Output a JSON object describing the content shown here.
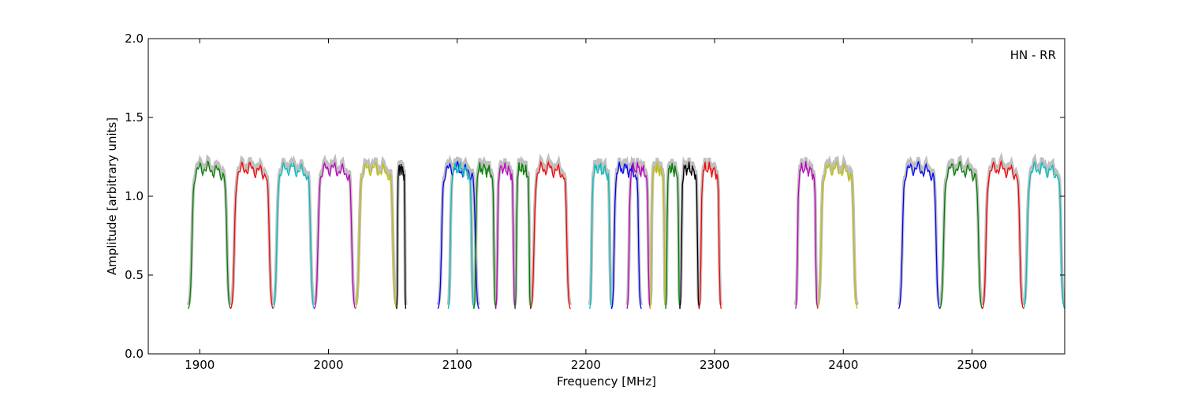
{
  "chart_data": {
    "type": "line",
    "title": "",
    "annotation": "HN - RR",
    "xlabel": "Frequency [MHz]",
    "ylabel": "Amplitude [arbitrary units]",
    "xlim": [
      1860,
      2572
    ],
    "ylim": [
      0.0,
      2.0
    ],
    "xticks": [
      1900,
      2000,
      2100,
      2200,
      2300,
      2400,
      2500
    ],
    "xtick_labels": [
      "1900",
      "2000",
      "2100",
      "2200",
      "2300",
      "2400",
      "2500"
    ],
    "yticks": [
      0.0,
      0.5,
      1.0,
      1.5,
      2.0
    ],
    "ytick_labels": [
      "0.0",
      "0.5",
      "1.0",
      "1.5",
      "2.0"
    ],
    "grid": false,
    "background_color": "#bfbfbf",
    "segments": [
      {
        "start": 1891,
        "end": 1924,
        "color": "#008000"
      },
      {
        "start": 1924,
        "end": 1957,
        "color": "#ff0000"
      },
      {
        "start": 1957,
        "end": 1989,
        "color": "#00bfbf"
      },
      {
        "start": 1989,
        "end": 2021,
        "color": "#bf00bf"
      },
      {
        "start": 2021,
        "end": 2053,
        "color": "#bfbf00"
      },
      {
        "start": 2053,
        "end": 2060,
        "color": "#000000"
      },
      {
        "start": 2085,
        "end": 2117,
        "color": "#0000ff"
      },
      {
        "start": 2093,
        "end": 2113,
        "color": "#00bfbf"
      },
      {
        "start": 2113,
        "end": 2130,
        "color": "#008000"
      },
      {
        "start": 2130,
        "end": 2145,
        "color": "#bf00bf"
      },
      {
        "start": 2145,
        "end": 2157,
        "color": "#008000"
      },
      {
        "start": 2157,
        "end": 2188,
        "color": "#ff0000"
      },
      {
        "start": 2203,
        "end": 2220,
        "color": "#00bfbf"
      },
      {
        "start": 2220,
        "end": 2243,
        "color": "#0000ff"
      },
      {
        "start": 2232,
        "end": 2250,
        "color": "#bf00bf"
      },
      {
        "start": 2250,
        "end": 2262,
        "color": "#bfbf00"
      },
      {
        "start": 2262,
        "end": 2273,
        "color": "#008000"
      },
      {
        "start": 2273,
        "end": 2288,
        "color": "#000000"
      },
      {
        "start": 2288,
        "end": 2305,
        "color": "#ff0000"
      },
      {
        "start": 2363,
        "end": 2380,
        "color": "#bf00bf"
      },
      {
        "start": 2380,
        "end": 2411,
        "color": "#bfbf00"
      },
      {
        "start": 2443,
        "end": 2475,
        "color": "#0000ff"
      },
      {
        "start": 2475,
        "end": 2508,
        "color": "#008000"
      },
      {
        "start": 2508,
        "end": 2540,
        "color": "#ff0000"
      },
      {
        "start": 2540,
        "end": 2572,
        "color": "#00bfbf"
      }
    ]
  }
}
